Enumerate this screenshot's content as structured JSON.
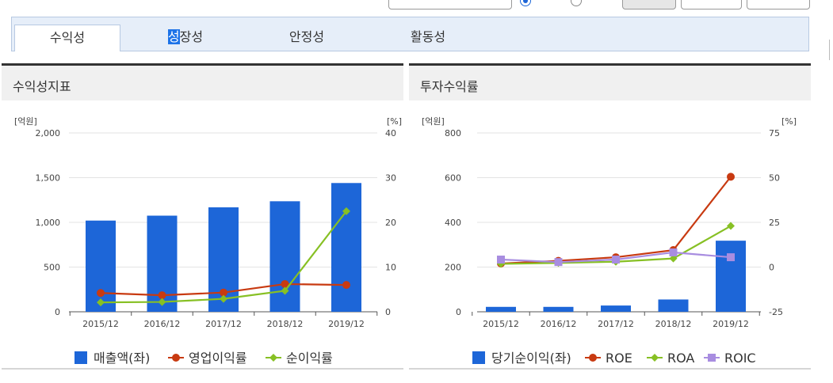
{
  "tabs": [
    {
      "label_pre": "",
      "label_hl": "",
      "label_post": "수익성"
    },
    {
      "label_pre": "",
      "label_hl": "성",
      "label_post": "장성"
    },
    {
      "label_pre": "",
      "label_hl": "",
      "label_post": "안정성"
    },
    {
      "label_pre": "",
      "label_hl": "",
      "label_post": "활동성"
    }
  ],
  "active_tab": 0,
  "colors": {
    "bar": "#1d66d8",
    "orange": "#c83a11",
    "green": "#87c024",
    "purple": "#a88de0",
    "grid": "#e3e3e3",
    "axis": "#555555"
  },
  "chart_data": [
    {
      "type": "bar",
      "title": "수익성지표",
      "ylabel_left": "[억원]",
      "ylabel_right": "[%]",
      "categories": [
        "2015/12",
        "2016/12",
        "2017/12",
        "2018/12",
        "2019/12"
      ],
      "ylim_left": [
        0,
        2000
      ],
      "yticks_left": [
        "2,000",
        "1,500",
        "1,000",
        "500",
        "0"
      ],
      "ylim_right": [
        0,
        40
      ],
      "yticks_right": [
        "40",
        "30",
        "20",
        "10",
        "0"
      ],
      "series": [
        {
          "name": "매출액(좌)",
          "type": "bar",
          "axis": "left",
          "values": [
            1020,
            1075,
            1168,
            1236,
            1440
          ]
        },
        {
          "name": "영업이익률",
          "type": "line",
          "axis": "right",
          "marker": "circle",
          "values": [
            4.2,
            3.7,
            4.3,
            6.2,
            6.0
          ]
        },
        {
          "name": "순이익률",
          "type": "line",
          "axis": "right",
          "marker": "diamond",
          "values": [
            2.1,
            2.2,
            2.9,
            4.7,
            22.5
          ]
        }
      ],
      "legend": [
        "매출액(좌)",
        "영업이익률",
        "순이익률"
      ],
      "legend_position": "bottom",
      "grid": true
    },
    {
      "type": "bar",
      "title": "투자수익률",
      "ylabel_left": "[억원]",
      "ylabel_right": "[%]",
      "categories": [
        "2015/12",
        "2016/12",
        "2017/12",
        "2018/12",
        "2019/12"
      ],
      "ylim_left": [
        0,
        800
      ],
      "yticks_left": [
        "800",
        "600",
        "400",
        "200",
        "0"
      ],
      "ylim_right": [
        -25,
        75
      ],
      "yticks_right": [
        "75",
        "50",
        "25",
        "0",
        "-25"
      ],
      "series": [
        {
          "name": "당기순이익(좌)",
          "type": "bar",
          "axis": "left",
          "values": [
            22,
            22,
            28,
            55,
            318
          ]
        },
        {
          "name": "ROE",
          "type": "line",
          "axis": "right",
          "marker": "circle",
          "values": [
            2.0,
            3.5,
            5.5,
            9.5,
            50.5
          ]
        },
        {
          "name": "ROA",
          "type": "line",
          "axis": "right",
          "marker": "diamond",
          "values": [
            1.8,
            2.3,
            3.0,
            4.8,
            23.0
          ]
        },
        {
          "name": "ROIC",
          "type": "line",
          "axis": "right",
          "marker": "square",
          "values": [
            4.2,
            2.8,
            4.2,
            8.2,
            5.5
          ]
        }
      ],
      "legend": [
        "당기순이익(좌)",
        "ROE",
        "ROA",
        "ROIC"
      ],
      "legend_position": "bottom",
      "grid": true
    }
  ]
}
